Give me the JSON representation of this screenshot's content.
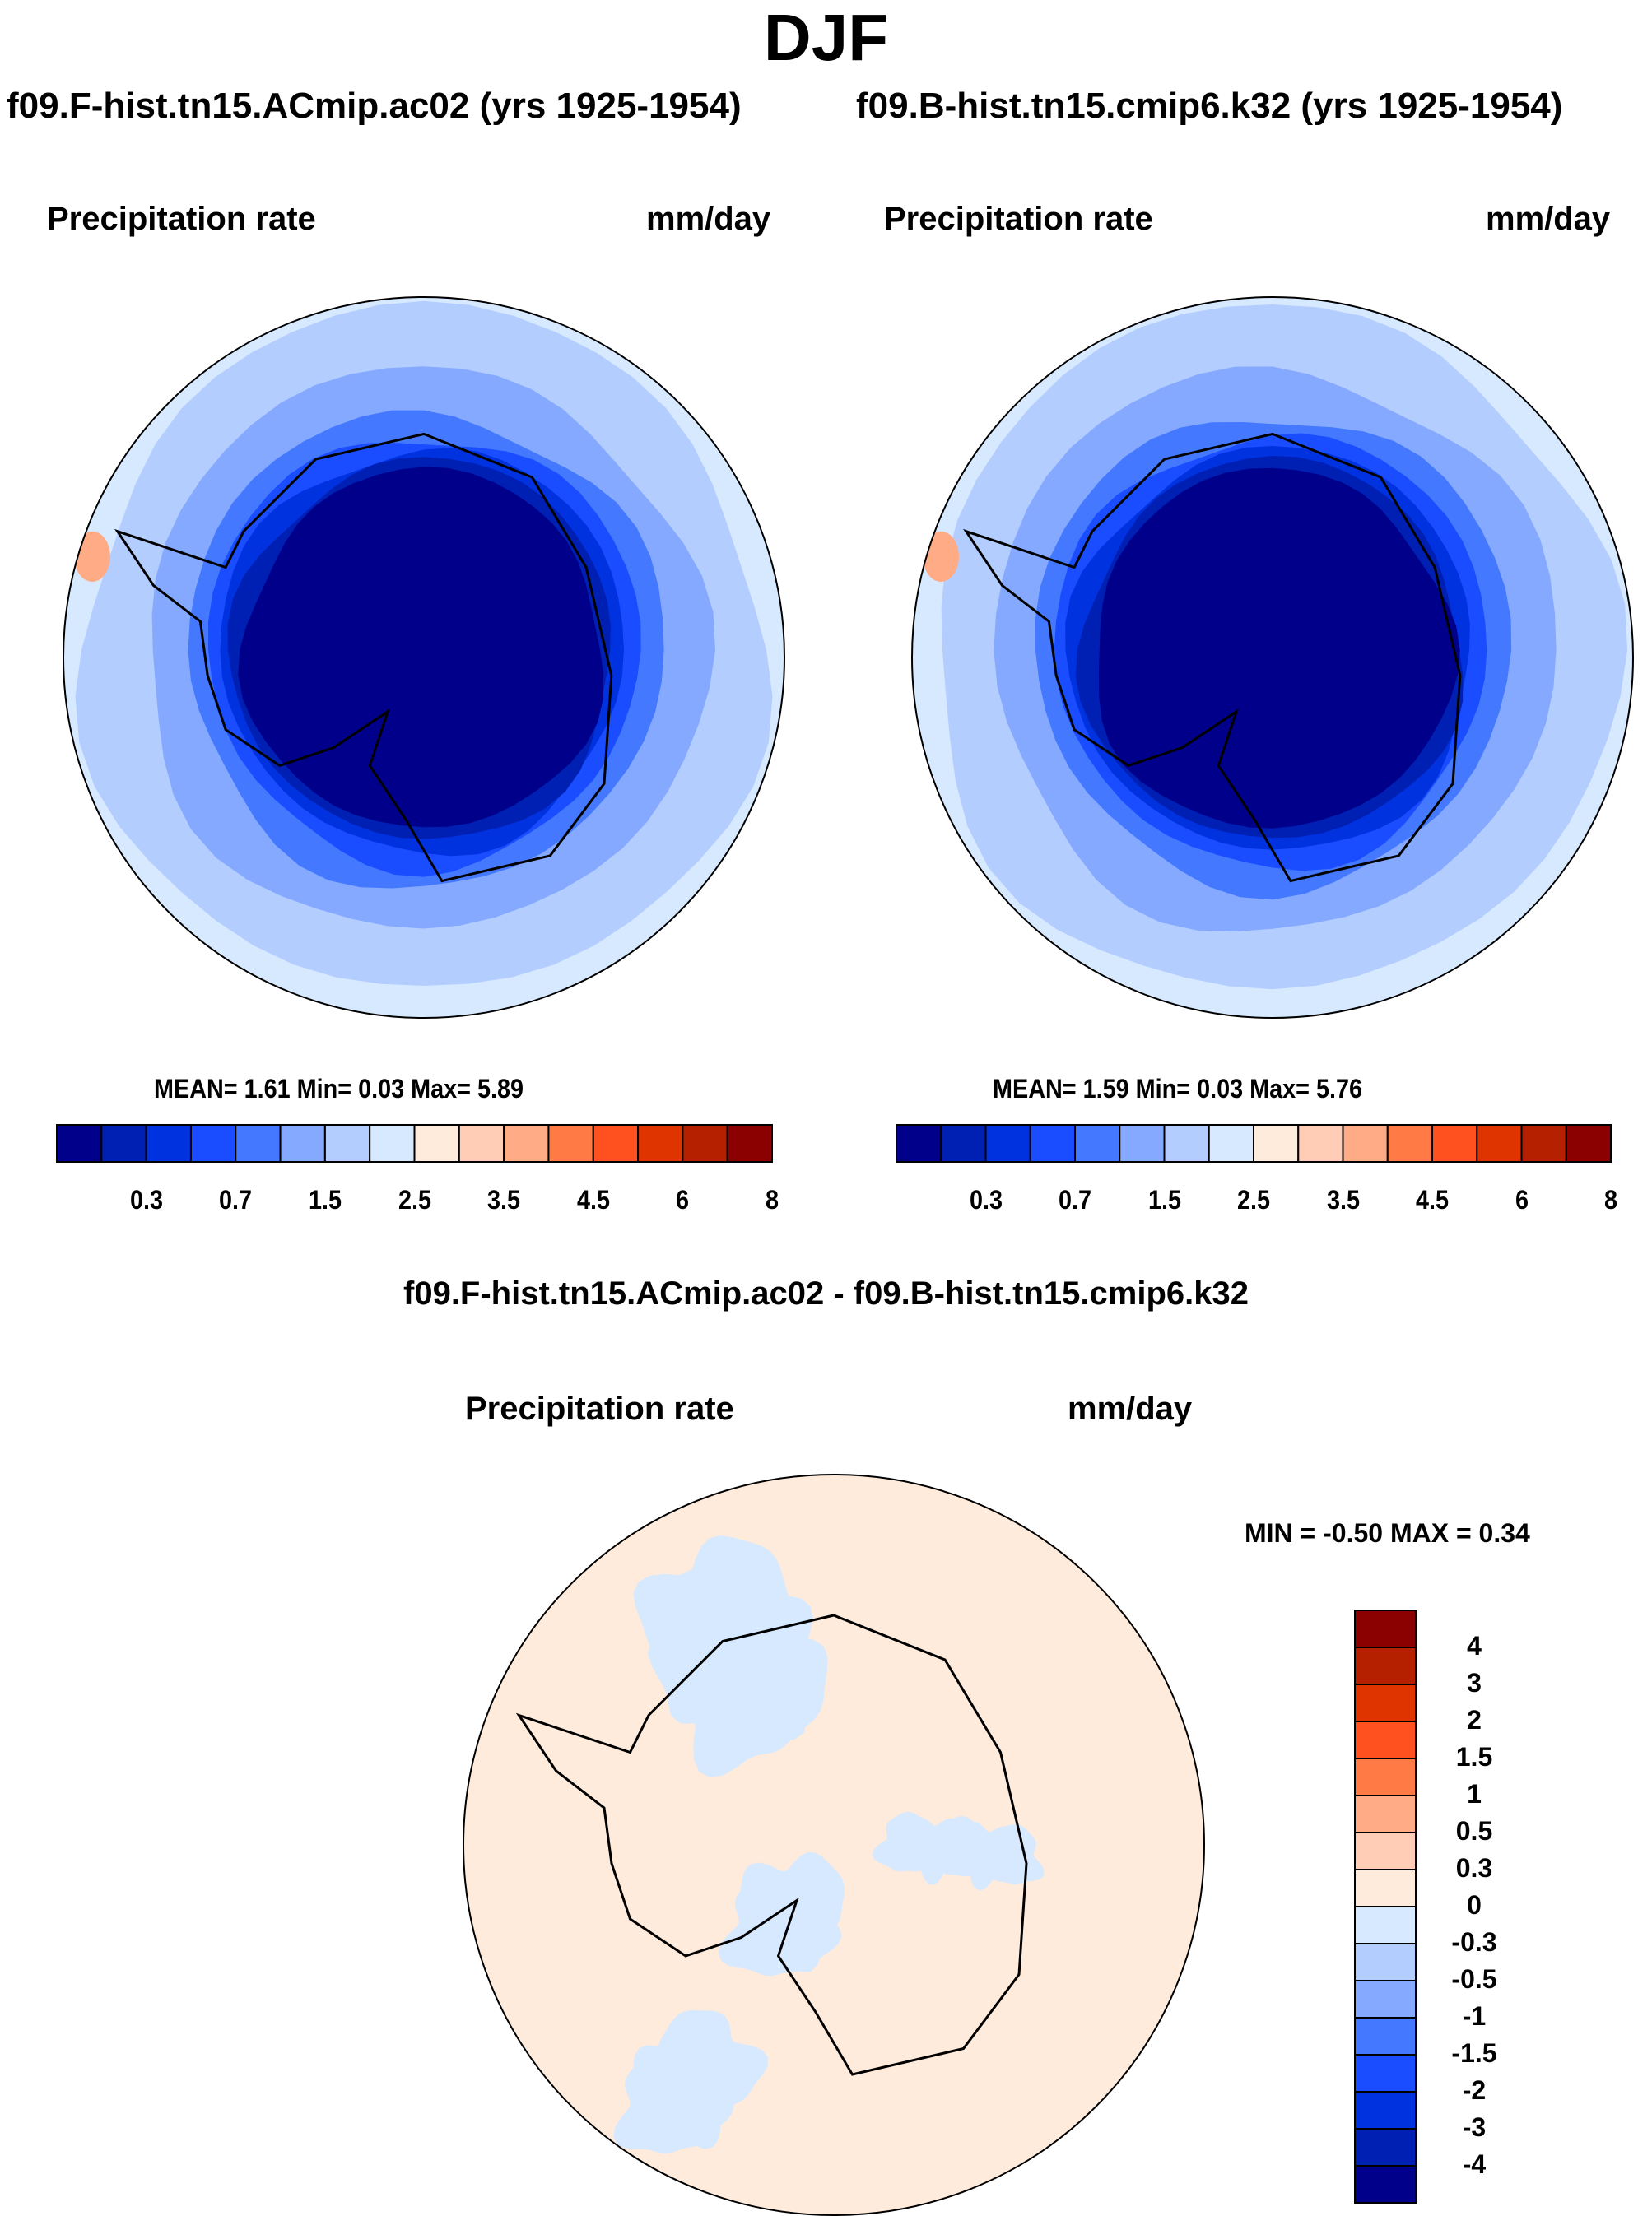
{
  "title": "DJF",
  "panels": [
    {
      "case": "f09.F-hist.tn15.ACmip.ac02 (yrs 1925-1954)",
      "variable": "Precipitation rate",
      "units": "mm/day",
      "stats": "MEAN=   1.61  Min=   0.03  Max=   5.89"
    },
    {
      "case": "f09.B-hist.tn15.cmip6.k32 (yrs 1925-1954)",
      "variable": "Precipitation rate",
      "units": "mm/day",
      "stats": "MEAN=   1.59  Min=   0.03  Max=   5.76"
    }
  ],
  "diff": {
    "title": "f09.F-hist.tn15.ACmip.ac02 - f09.B-hist.tn15.cmip6.k32",
    "variable": "Precipitation rate",
    "units": "mm/day",
    "stats": "MIN =  -0.50 MAX =   0.34"
  },
  "chart_data": [
    {
      "type": "heatmap",
      "projection": "south-polar stereographic",
      "title": "f09.F-hist.tn15.ACmip.ac02 (yrs 1925-1954)",
      "mean": 1.61,
      "min": 0.03,
      "max": 5.89,
      "colorbar_labels": [
        "0.3",
        "0.7",
        "1.5",
        "2.5",
        "3.5",
        "4.5",
        "6",
        "8"
      ]
    },
    {
      "type": "heatmap",
      "projection": "south-polar stereographic",
      "title": "f09.B-hist.tn15.cmip6.k32 (yrs 1925-1954)",
      "mean": 1.59,
      "min": 0.03,
      "max": 5.76,
      "colorbar_labels": [
        "0.3",
        "0.7",
        "1.5",
        "2.5",
        "3.5",
        "4.5",
        "6",
        "8"
      ]
    },
    {
      "type": "heatmap",
      "projection": "south-polar stereographic",
      "title": "difference",
      "min": -0.5,
      "max": 0.34,
      "colorbar_labels": [
        "4",
        "3",
        "2",
        "1.5",
        "1",
        "0.5",
        "0.3",
        "0",
        "-0.3",
        "-0.5",
        "-1",
        "-1.5",
        "-2",
        "-3",
        "-4"
      ]
    }
  ],
  "colors": [
    "#00008b",
    "#0020b4",
    "#0032e0",
    "#1a4dff",
    "#4479ff",
    "#84a9ff",
    "#b4cdff",
    "#d7e9ff",
    "#ffebdb",
    "#ffcdb5",
    "#ffab85",
    "#ff7a45",
    "#ff5020",
    "#e03400",
    "#b52000",
    "#8b0000"
  ]
}
